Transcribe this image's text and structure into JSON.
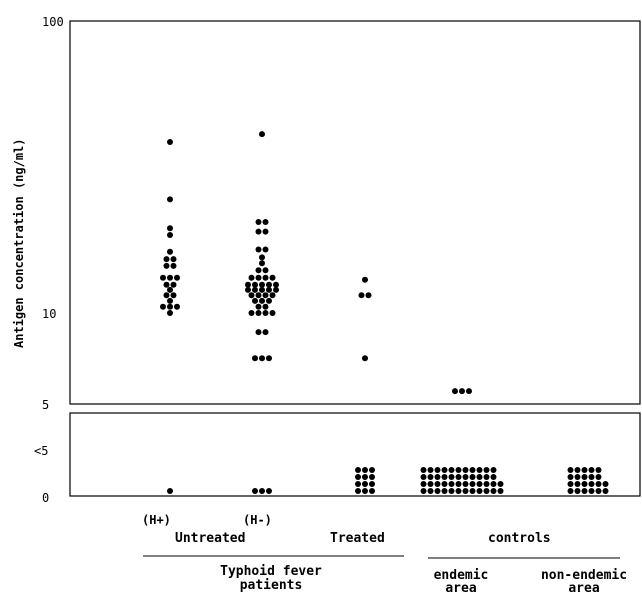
{
  "chart_data": {
    "type": "scatter",
    "title": "",
    "ylabel": "Antigen concentration (ng/ml)",
    "y_scale": "log",
    "ylim": [
      5,
      100
    ],
    "y_ticks": [
      "100",
      "10",
      "5"
    ],
    "below_range": {
      "label": "<5",
      "baseline_label": "0"
    },
    "groups": [
      {
        "label": "(H+)",
        "parent": "Untreated",
        "values": [
          38.5,
          24.5,
          19.5,
          18.5,
          16.2,
          15.3,
          15.0,
          14.5,
          14.0,
          13.2,
          13.0,
          12.8,
          12.5,
          12.2,
          12.0,
          11.5,
          11.3,
          11.0,
          10.5,
          10.3,
          10.2,
          10.0
        ],
        "below_count": 1
      },
      {
        "label": "(H-)",
        "parent": "Untreated",
        "values": [
          41.0,
          20.5,
          19.8,
          19.0,
          18.5,
          16.5,
          16.3,
          15.5,
          14.8,
          14.0,
          13.5,
          13.2,
          13.0,
          12.8,
          12.7,
          12.5,
          12.4,
          12.3,
          12.2,
          12.1,
          12.0,
          11.9,
          11.8,
          11.7,
          11.6,
          11.5,
          11.4,
          11.3,
          11.2,
          11.0,
          10.8,
          10.6,
          10.5,
          10.3,
          10.0,
          10.0,
          9.9,
          9.8,
          8.6,
          8.4,
          7.0,
          7.0,
          7.0
        ],
        "below_count": 3
      },
      {
        "label": "Treated",
        "parent": "Typhoid fever patients",
        "values": [
          13.0,
          11.5,
          11.3,
          7.0
        ],
        "below_count": 12
      },
      {
        "label": "endemic area",
        "parent": "controls",
        "values": [
          5.4,
          5.4,
          5.4
        ],
        "below_count": 46
      },
      {
        "label": "non-endemic area",
        "parent": "controls",
        "values": [],
        "below_count": 22
      }
    ],
    "x_labels": {
      "h_plus": "(H+)",
      "h_minus": "(H-)",
      "untreated": "Untreated",
      "treated": "Treated",
      "controls": "controls",
      "typhoid_line1": "Typhoid fever",
      "typhoid_line2": "patients",
      "endemic_line1": "endemic",
      "endemic_line2": "area",
      "nonendemic_line1": "non-endemic",
      "nonendemic_line2": "area"
    }
  }
}
